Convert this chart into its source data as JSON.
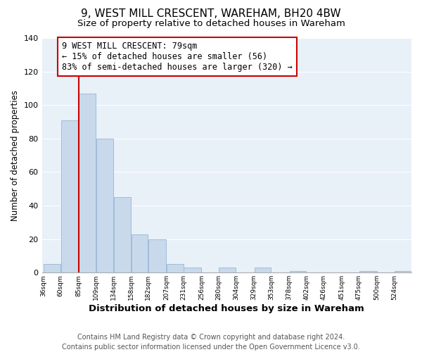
{
  "title": "9, WEST MILL CRESCENT, WAREHAM, BH20 4BW",
  "subtitle": "Size of property relative to detached houses in Wareham",
  "xlabel": "Distribution of detached houses by size in Wareham",
  "ylabel": "Number of detached properties",
  "bin_labels": [
    "36sqm",
    "60sqm",
    "85sqm",
    "109sqm",
    "134sqm",
    "158sqm",
    "182sqm",
    "207sqm",
    "231sqm",
    "256sqm",
    "280sqm",
    "304sqm",
    "329sqm",
    "353sqm",
    "378sqm",
    "402sqm",
    "426sqm",
    "451sqm",
    "475sqm",
    "500sqm",
    "524sqm"
  ],
  "bin_edges": [
    36,
    60,
    85,
    109,
    134,
    158,
    182,
    207,
    231,
    256,
    280,
    304,
    329,
    353,
    378,
    402,
    426,
    451,
    475,
    500,
    524,
    548
  ],
  "bar_heights": [
    5,
    91,
    107,
    80,
    45,
    23,
    20,
    5,
    3,
    0,
    3,
    0,
    3,
    0,
    1,
    0,
    0,
    0,
    1,
    0,
    1
  ],
  "bar_color": "#c8d9ec",
  "bar_edgecolor": "#a0bcd8",
  "property_line_x": 85,
  "property_line_color": "#cc0000",
  "annotation_line1": "9 WEST MILL CRESCENT: 79sqm",
  "annotation_line2": "← 15% of detached houses are smaller (56)",
  "annotation_line3": "83% of semi-detached houses are larger (320) →",
  "annotation_box_color": "#ffffff",
  "annotation_border_color": "#cc0000",
  "ylim": [
    0,
    140
  ],
  "yticks": [
    0,
    20,
    40,
    60,
    80,
    100,
    120,
    140
  ],
  "footer_line1": "Contains HM Land Registry data © Crown copyright and database right 2024.",
  "footer_line2": "Contains public sector information licensed under the Open Government Licence v3.0.",
  "title_fontsize": 11,
  "subtitle_fontsize": 9.5,
  "annotation_fontsize": 8.5,
  "footer_fontsize": 7,
  "plot_bg_color": "#e8f0f8",
  "fig_bg_color": "#ffffff",
  "grid_color": "#ffffff"
}
